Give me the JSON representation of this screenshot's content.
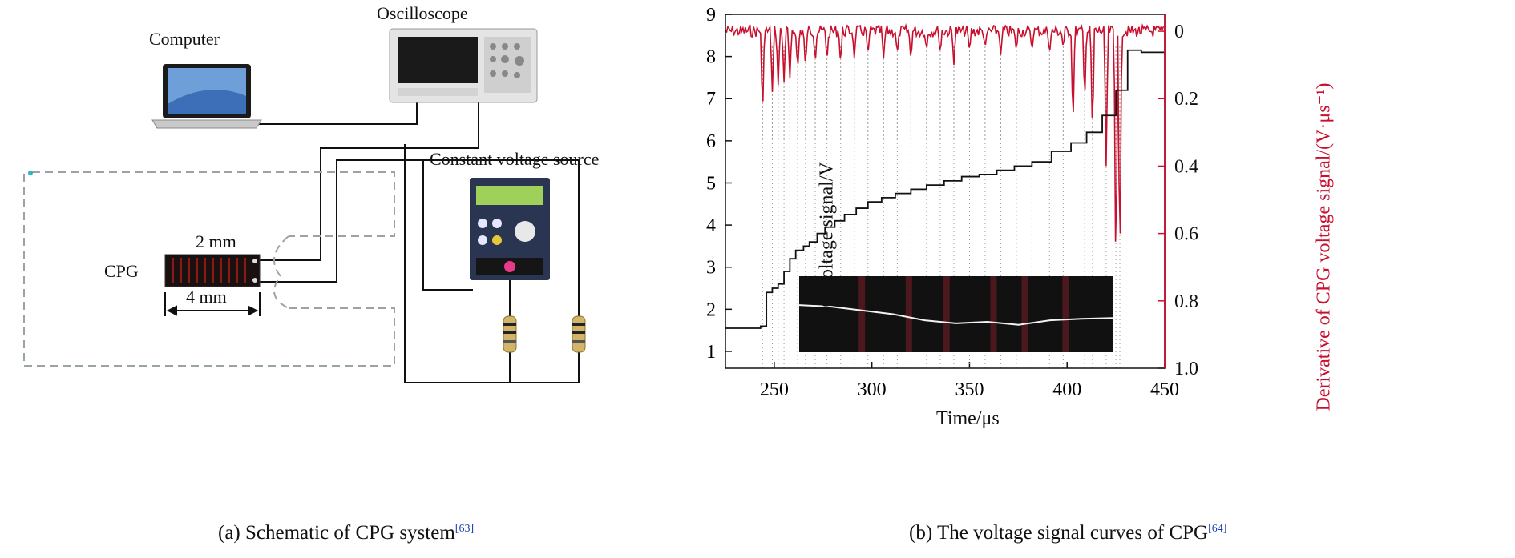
{
  "panel_a": {
    "labels": {
      "computer": "Computer",
      "oscilloscope": "Oscilloscope",
      "voltage_source": "Constant voltage source",
      "cpg": "CPG",
      "dim_width": "2 mm",
      "dim_length": "4 mm"
    },
    "caption": {
      "text": "(a) Schematic of CPG system",
      "ref": "[63]"
    }
  },
  "panel_b": {
    "caption": {
      "text": "(b) The voltage signal curves of CPG",
      "ref": "[64]"
    }
  },
  "chart_data": {
    "type": "line",
    "xlabel": "Time/μs",
    "ylabel": "CPG voltage signal/V",
    "y2label": "Derivative of CPG voltage signal/(V·μs⁻¹)",
    "xlim": [
      225,
      450
    ],
    "ylim": [
      0.6,
      9
    ],
    "y2lim": [
      -0.05,
      1.0
    ],
    "x_ticks": [
      "250",
      "300",
      "350",
      "400",
      "450"
    ],
    "y_ticks": [
      "1",
      "2",
      "3",
      "4",
      "5",
      "6",
      "7",
      "8",
      "9"
    ],
    "y2_ticks": [
      "0",
      "0.2",
      "0.4",
      "0.6",
      "0.8",
      "1.0"
    ],
    "colors": {
      "voltage": "#111111",
      "derivative": "#c8102e",
      "frame": "#c8102e",
      "inset_bg": "#111111"
    },
    "series": [
      {
        "axis": "left",
        "x": [
          225,
          243,
          246,
          249,
          252,
          255,
          258,
          261,
          265,
          268,
          272,
          276,
          281,
          286,
          292,
          298,
          305,
          312,
          320,
          328,
          337,
          346,
          355,
          364,
          373,
          382,
          392,
          402,
          410,
          418,
          425,
          431,
          438,
          450
        ],
        "values": [
          1.55,
          1.6,
          2.4,
          2.5,
          2.6,
          2.9,
          3.2,
          3.4,
          3.5,
          3.6,
          3.8,
          3.95,
          4.1,
          4.25,
          4.4,
          4.55,
          4.65,
          4.75,
          4.85,
          4.95,
          5.05,
          5.15,
          5.2,
          5.3,
          5.4,
          5.5,
          5.75,
          5.95,
          6.2,
          6.6,
          7.2,
          8.15,
          8.1,
          8.1
        ]
      },
      {
        "axis": "right",
        "spikes_x": [
          244,
          249,
          252,
          255,
          258,
          262,
          266,
          271,
          277,
          284,
          291,
          298,
          306,
          313,
          320,
          328,
          335,
          342,
          350,
          358,
          366,
          374,
          382,
          391,
          398,
          403,
          409,
          413,
          420,
          425,
          427
        ],
        "spikes_y": [
          0.26,
          0.18,
          0.16,
          0.15,
          0.14,
          0.12,
          0.11,
          0.1,
          0.09,
          0.1,
          0.08,
          0.07,
          0.08,
          0.07,
          0.09,
          0.06,
          0.07,
          0.1,
          0.06,
          0.05,
          0.07,
          0.06,
          0.06,
          0.07,
          0.05,
          0.3,
          0.22,
          0.32,
          0.4,
          0.78,
          0.75
        ],
        "baseline": 0.0
      }
    ],
    "inset": {
      "type": "line",
      "x": [
        0,
        0.1,
        0.2,
        0.3,
        0.4,
        0.5,
        0.6,
        0.7,
        0.8,
        0.9,
        1.0
      ],
      "values": [
        0.62,
        0.6,
        0.55,
        0.5,
        0.42,
        0.38,
        0.4,
        0.36,
        0.42,
        0.44,
        0.45
      ],
      "stripes_x": [
        0.2,
        0.35,
        0.47,
        0.62,
        0.72,
        0.85
      ]
    }
  }
}
